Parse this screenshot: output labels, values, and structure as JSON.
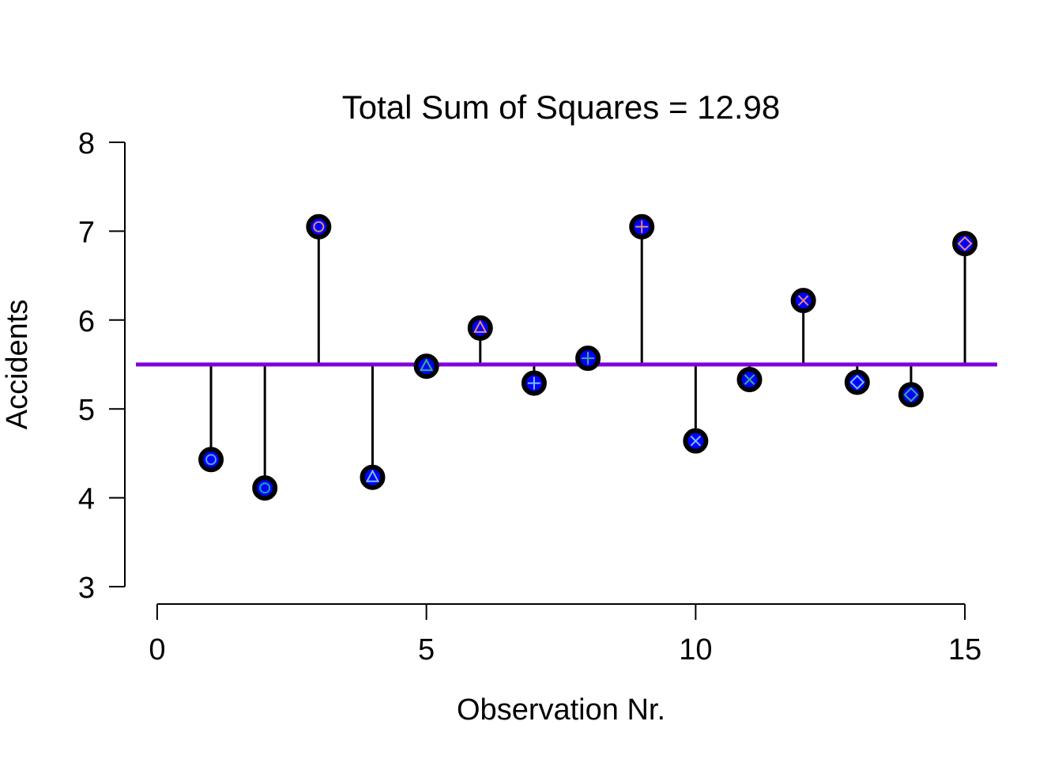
{
  "chart_data": {
    "type": "scatter",
    "title": "Total Sum of Squares = 12.98",
    "xlabel": "Observation Nr.",
    "ylabel": "Accidents",
    "xlim": [
      -0.6,
      15.6
    ],
    "ylim": [
      3,
      8
    ],
    "xticks": [
      0,
      5,
      10,
      15
    ],
    "yticks": [
      3,
      4,
      5,
      6,
      7,
      8
    ],
    "mean": 5.5,
    "grid": false,
    "colors": {
      "mean_line": "#8000d9",
      "stems": "#000000",
      "marker_fill": "#0000ff",
      "marker_outline": "#000000"
    },
    "points": [
      {
        "x": 1,
        "y": 4.43,
        "glyph": "circle",
        "glyph_color": "#4fa3ff"
      },
      {
        "x": 2,
        "y": 4.11,
        "glyph": "circle",
        "glyph_color": "#17a6a6"
      },
      {
        "x": 3,
        "y": 7.05,
        "glyph": "circle",
        "glyph_color": "#e08a7a"
      },
      {
        "x": 4,
        "y": 4.23,
        "glyph": "triangle",
        "glyph_color": "#79c3ff"
      },
      {
        "x": 5,
        "y": 5.48,
        "glyph": "triangle",
        "glyph_color": "#39b08a"
      },
      {
        "x": 6,
        "y": 5.91,
        "glyph": "triangle",
        "glyph_color": "#e88a7a"
      },
      {
        "x": 7,
        "y": 5.29,
        "glyph": "plus",
        "glyph_color": "#79c3ff"
      },
      {
        "x": 8,
        "y": 5.57,
        "glyph": "plus",
        "glyph_color": "#39b08a"
      },
      {
        "x": 9,
        "y": 7.05,
        "glyph": "plus",
        "glyph_color": "#e88a7a"
      },
      {
        "x": 10,
        "y": 4.64,
        "glyph": "cross",
        "glyph_color": "#79c3ff"
      },
      {
        "x": 11,
        "y": 5.33,
        "glyph": "cross",
        "glyph_color": "#39b08a"
      },
      {
        "x": 12,
        "y": 6.22,
        "glyph": "cross",
        "glyph_color": "#e88a7a"
      },
      {
        "x": 13,
        "y": 5.3,
        "glyph": "diamond",
        "glyph_color": "#79c3ff"
      },
      {
        "x": 14,
        "y": 5.16,
        "glyph": "diamond",
        "glyph_color": "#39b08a"
      },
      {
        "x": 15,
        "y": 6.86,
        "glyph": "diamond",
        "glyph_color": "#e88a7a"
      }
    ]
  }
}
